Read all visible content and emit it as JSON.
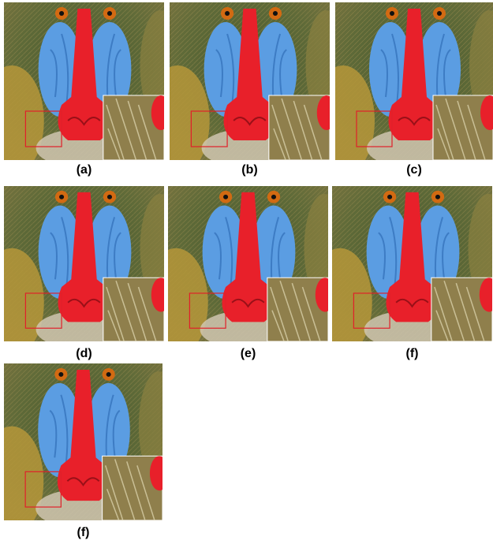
{
  "panels": [
    {
      "label": "(a)"
    },
    {
      "label": "(b)"
    },
    {
      "label": "(c)"
    },
    {
      "label": "(d)"
    },
    {
      "label": "(e)"
    },
    {
      "label": "(f)"
    },
    {
      "label": "(f)"
    }
  ]
}
